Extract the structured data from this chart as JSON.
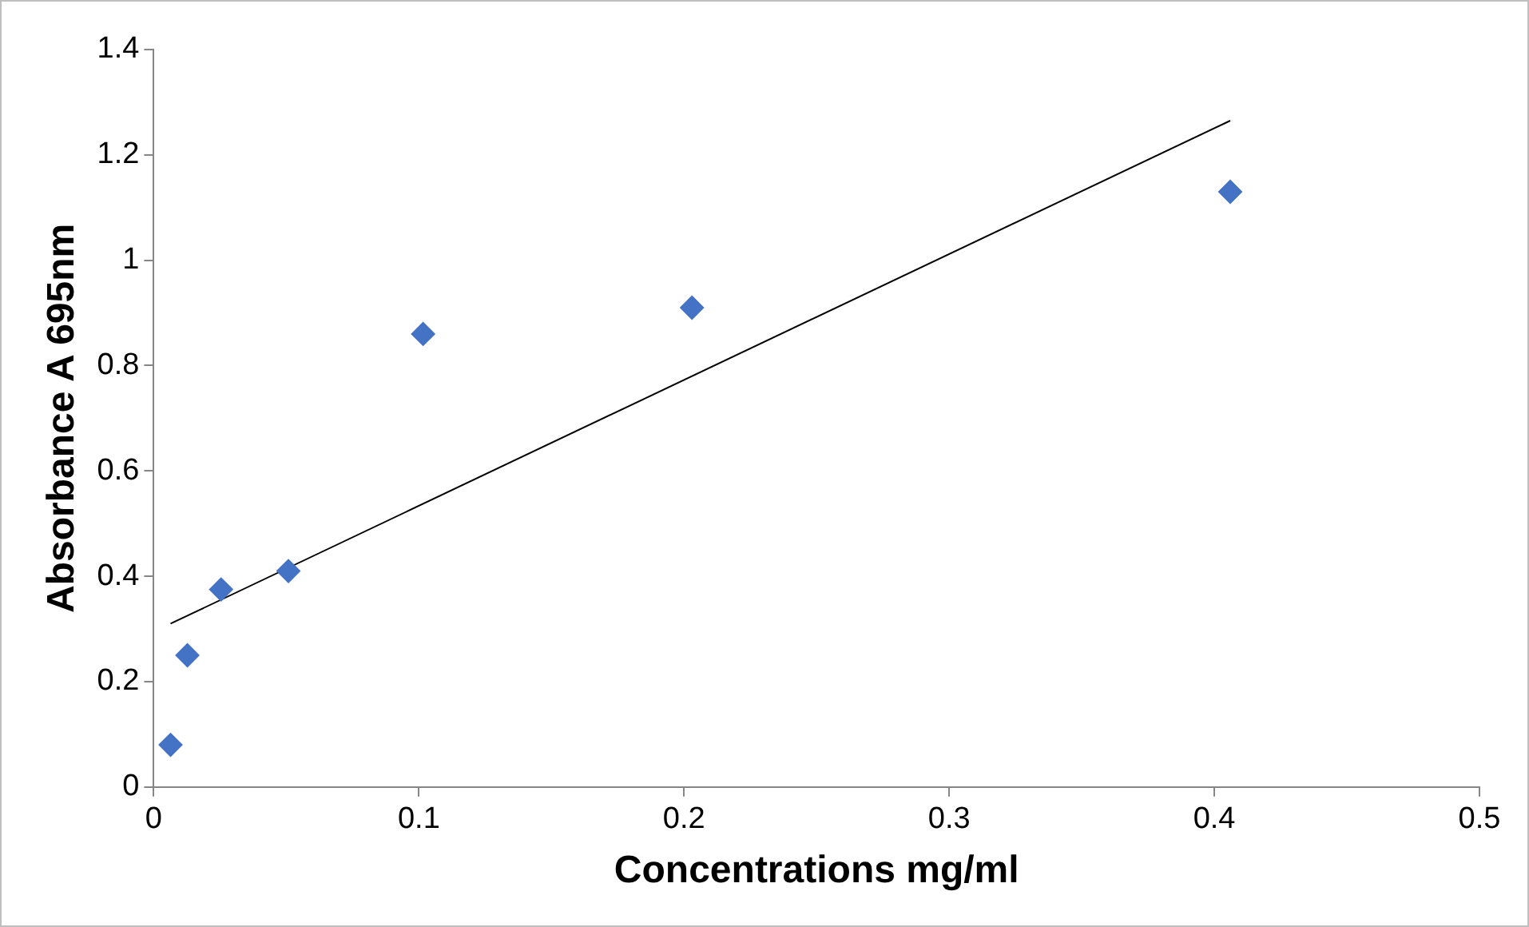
{
  "chart_data": {
    "type": "scatter",
    "xlabel": "Concentrations mg/ml",
    "ylabel": "Absorbance A 695nm",
    "x": [
      0.00635,
      0.0127,
      0.0254,
      0.0508,
      0.1016,
      0.203,
      0.406
    ],
    "series": [
      {
        "color": "#4472c4",
        "values": [
          0.08,
          0.25,
          0.375,
          0.41,
          0.86,
          0.91,
          1.13
        ]
      },
      {
        "type": "line",
        "marker": "none",
        "color": "#000000",
        "x": [
          0.00635,
          0.406
        ],
        "values": [
          0.31,
          1.265
        ]
      }
    ],
    "marker": "diamond",
    "xlim": [
      0,
      0.5
    ],
    "xticks": [
      0,
      0.1,
      0.2,
      0.3,
      0.4,
      0.5
    ],
    "ylim": [
      0,
      1.4
    ],
    "yticks": [
      0,
      0.2,
      0.4,
      0.6,
      0.8,
      1,
      1.2,
      1.4
    ],
    "grid": false,
    "legend": false
  }
}
